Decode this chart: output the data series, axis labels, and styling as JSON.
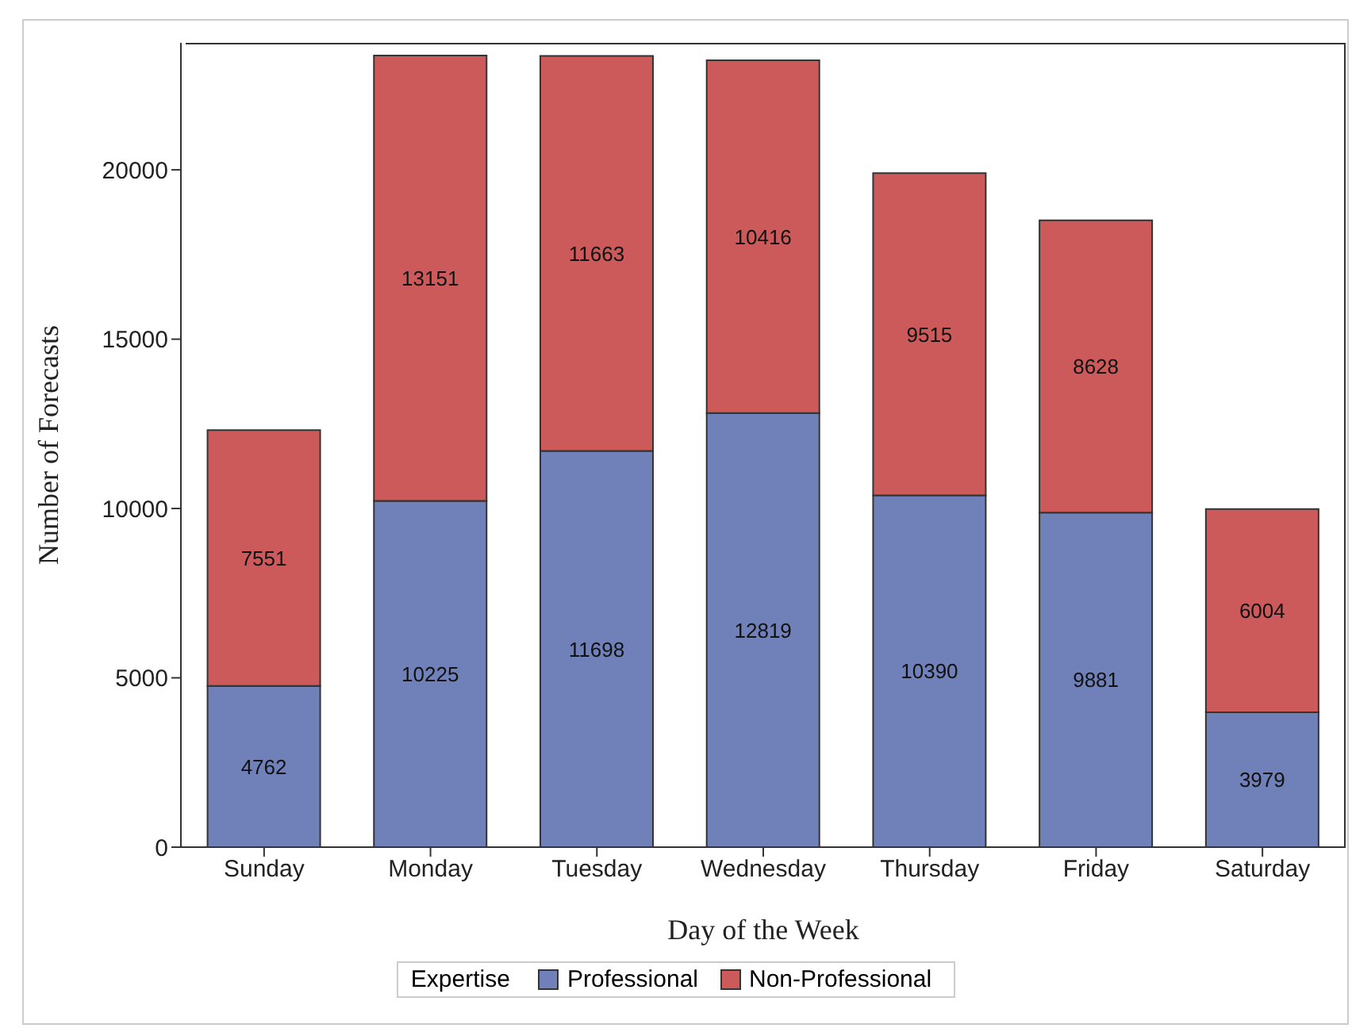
{
  "chart_data": {
    "type": "bar",
    "stacked": true,
    "xlabel": "Day of the Week",
    "ylabel": "Number of Forecasts",
    "legend_title": "Expertise",
    "legend": "bottom",
    "grid": false,
    "data_labels": true,
    "categories": [
      "Sunday",
      "Monday",
      "Tuesday",
      "Wednesday",
      "Thursday",
      "Friday",
      "Saturday"
    ],
    "series": [
      {
        "name": "Professional",
        "color": "#7080b8",
        "values": [
          4762,
          10225,
          11698,
          12819,
          10390,
          9881,
          3979
        ]
      },
      {
        "name": "Non-Professional",
        "color": "#cd5a5a",
        "values": [
          7551,
          13151,
          11663,
          10416,
          9515,
          8628,
          6004
        ]
      }
    ],
    "ylim": [
      0,
      23750
    ],
    "yticks": [
      0,
      5000,
      10000,
      15000,
      20000
    ]
  }
}
